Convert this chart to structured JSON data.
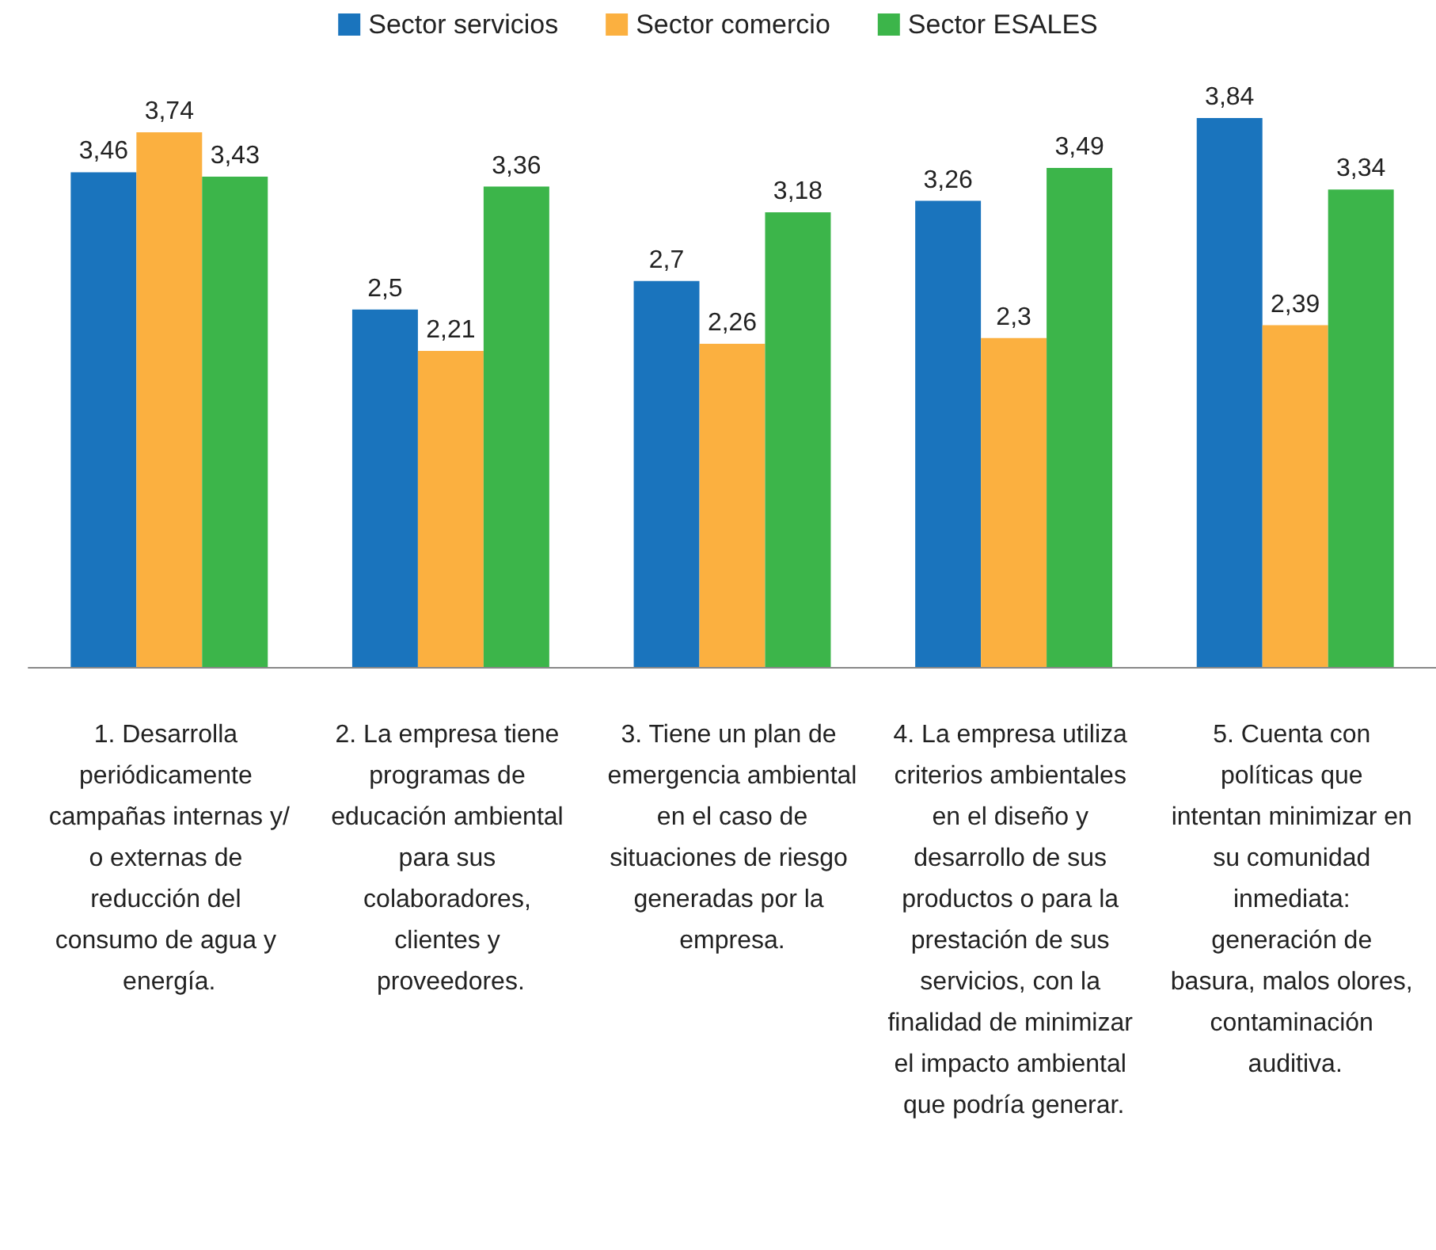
{
  "chart_data": {
    "type": "bar",
    "categories": [
      "1. Desarrolla periódicamente campañas internas y/o externas de reducción del consumo de agua y energía.",
      "2. La empresa tiene programas de educación ambiental para sus colaboradores, clientes y proveedores.",
      "3. Tiene un plan de emergencia ambiental en el caso de situaciones de riesgo generadas por la empresa.",
      "4. La empresa utiliza criterios ambientales en el diseño y desarrollo de sus productos o para la prestación de sus servicios, con la finalidad de minimizar el impacto ambiental que podría generar.",
      "5. Cuenta con políticas que intentan minimizar en su comunidad inmediata: generación de basura, malos olores, contaminación auditiva."
    ],
    "series": [
      {
        "name": "Sector servicios",
        "color": "#1a74bd",
        "values": [
          3.46,
          2.5,
          2.7,
          3.26,
          3.84
        ],
        "value_labels": [
          "3,46",
          "2,5",
          "2,7",
          "3,26",
          "3,84"
        ]
      },
      {
        "name": "Sector comercio",
        "color": "#fbb040",
        "values": [
          3.74,
          2.21,
          2.26,
          2.3,
          2.39
        ],
        "value_labels": [
          "3,74",
          "2,21",
          "2,26",
          "2,3",
          "2,39"
        ]
      },
      {
        "name": "Sector ESALES",
        "color": "#3cb54a",
        "values": [
          3.43,
          3.36,
          3.18,
          3.49,
          3.34
        ],
        "value_labels": [
          "3,43",
          "3,36",
          "3,18",
          "3,49",
          "3,34"
        ]
      }
    ],
    "legend": "top",
    "grid": false,
    "tick_labels": "x"
  }
}
